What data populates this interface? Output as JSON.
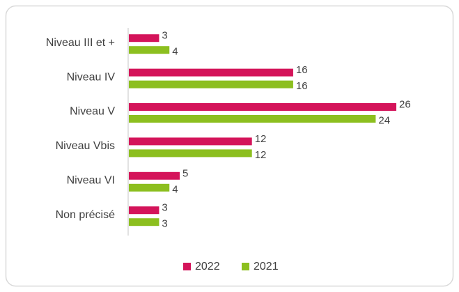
{
  "chart_data": {
    "type": "bar",
    "orientation": "horizontal",
    "categories": [
      "Niveau III et +",
      "Niveau IV",
      "Niveau V",
      "Niveau Vbis",
      "Niveau VI",
      "Non précisé"
    ],
    "series": [
      {
        "name": "2022",
        "color": "#d4145a",
        "values": [
          3,
          16,
          26,
          12,
          5,
          3
        ]
      },
      {
        "name": "2021",
        "color": "#8cbf1f",
        "values": [
          4,
          16,
          24,
          12,
          4,
          3
        ]
      }
    ],
    "legend": "bottom"
  }
}
